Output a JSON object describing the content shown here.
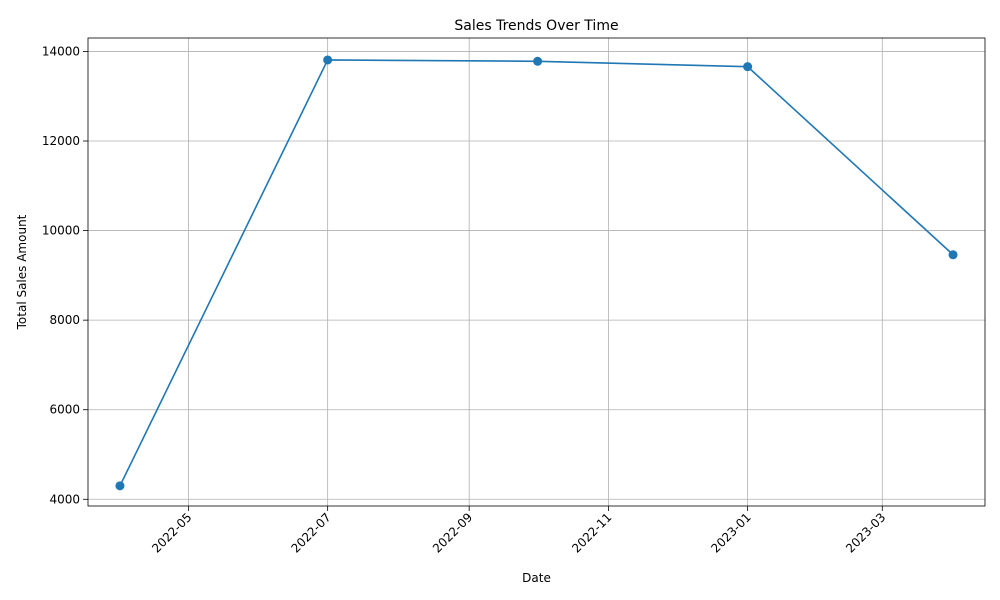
{
  "chart_data": {
    "type": "line",
    "title": "Sales Trends Over Time",
    "xlabel": "Date",
    "ylabel": "Total Sales Amount",
    "x": [
      "2022-04-01",
      "2022-07-01",
      "2022-10-01",
      "2023-01-01",
      "2023-04-01"
    ],
    "series": [
      {
        "values": [
          4300,
          13810,
          13780,
          13660,
          9460
        ]
      }
    ],
    "xlim": [
      "2022-03-18",
      "2023-04-15"
    ],
    "ylim": [
      3850,
      14300
    ],
    "x_tick_labels": [
      "2022-05",
      "2022-07",
      "2022-09",
      "2022-11",
      "2023-01",
      "2023-03"
    ],
    "y_ticks": [
      4000,
      6000,
      8000,
      10000,
      12000,
      14000
    ],
    "grid": true,
    "marker": "circle",
    "color": "#1f77b4"
  }
}
